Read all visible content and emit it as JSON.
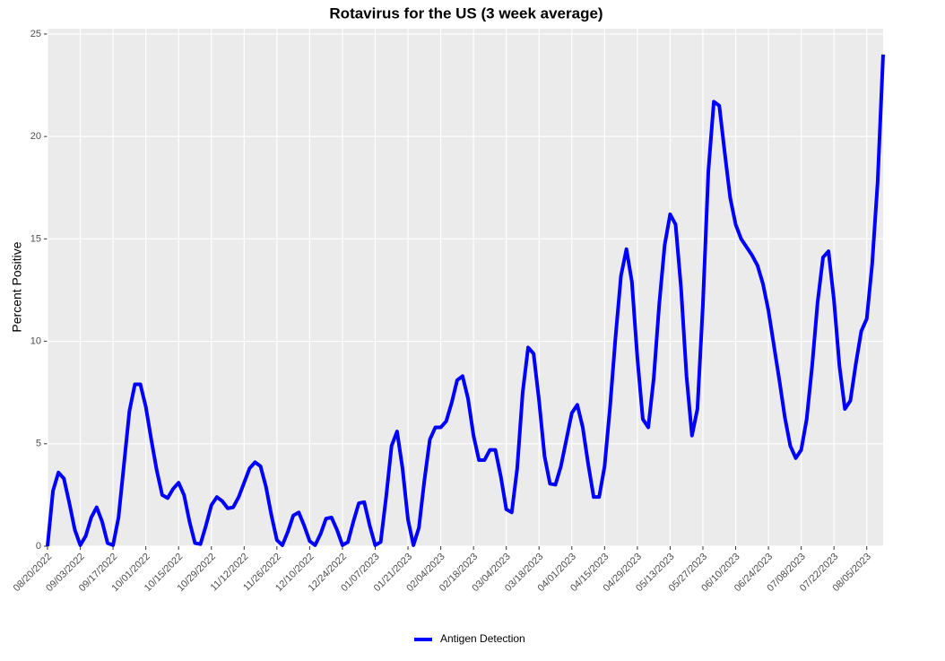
{
  "chart_data": {
    "type": "line",
    "title": "Rotavirus for the US (3 week average)",
    "y_label": "Percent Positive",
    "categories": [
      "08/20/2022",
      null,
      null,
      null,
      null,
      null,
      "09/03/2022",
      null,
      null,
      null,
      null,
      null,
      "09/17/2022",
      null,
      null,
      null,
      null,
      null,
      "10/01/2022",
      null,
      null,
      null,
      null,
      null,
      "10/15/2022",
      null,
      null,
      null,
      null,
      null,
      "10/29/2022",
      null,
      null,
      null,
      null,
      null,
      "11/12/2022",
      null,
      null,
      null,
      null,
      null,
      "11/26/2022",
      null,
      null,
      null,
      null,
      null,
      "12/10/2022",
      null,
      null,
      null,
      null,
      null,
      "12/24/2022",
      null,
      null,
      null,
      null,
      null,
      "01/07/2023",
      null,
      null,
      null,
      null,
      null,
      "01/21/2023",
      null,
      null,
      null,
      null,
      null,
      "02/04/2023",
      null,
      null,
      null,
      null,
      null,
      "02/18/2023",
      null,
      null,
      null,
      null,
      null,
      "03/04/2023",
      null,
      null,
      null,
      null,
      null,
      "03/18/2023",
      null,
      null,
      null,
      null,
      null,
      "04/01/2023",
      null,
      null,
      null,
      null,
      null,
      "04/15/2023",
      null,
      null,
      null,
      null,
      null,
      "04/29/2023",
      null,
      null,
      null,
      null,
      null,
      "05/13/2023",
      null,
      null,
      null,
      null,
      null,
      "05/27/2023",
      null,
      null,
      null,
      null,
      null,
      "06/10/2023",
      null,
      null,
      null,
      null,
      null,
      "06/24/2023",
      null,
      null,
      null,
      null,
      null,
      "07/08/2023",
      null,
      null,
      null,
      null,
      null,
      "07/22/2023",
      null,
      null,
      null,
      null,
      null,
      "08/05/2023",
      null,
      null,
      null
    ],
    "series": [
      {
        "name": "Antigen Detection",
        "color": "#0000ff",
        "values": [
          0,
          2.7,
          3.6,
          3.3,
          2.1,
          0.8,
          0.05,
          0.5,
          1.4,
          1.9,
          1.2,
          0.15,
          0.05,
          1.4,
          4.0,
          6.6,
          7.9,
          7.9,
          6.8,
          5.2,
          3.7,
          2.5,
          2.35,
          2.8,
          3.1,
          2.5,
          1.2,
          0.15,
          0.1,
          1.0,
          2.0,
          2.4,
          2.2,
          1.85,
          1.9,
          2.4,
          3.1,
          3.8,
          4.1,
          3.9,
          2.9,
          1.5,
          0.3,
          0.05,
          0.7,
          1.5,
          1.65,
          1.0,
          0.25,
          0.05,
          0.6,
          1.35,
          1.4,
          0.8,
          0.05,
          0.2,
          1.2,
          2.1,
          2.15,
          1.0,
          0.05,
          0.2,
          2.4,
          4.9,
          5.6,
          3.8,
          1.3,
          0.05,
          0.9,
          3.2,
          5.2,
          5.8,
          5.8,
          6.1,
          7.0,
          8.1,
          8.3,
          7.2,
          5.4,
          4.2,
          4.2,
          4.7,
          4.7,
          3.4,
          1.8,
          1.65,
          3.8,
          7.5,
          9.7,
          9.4,
          7.1,
          4.4,
          3.05,
          3.0,
          3.9,
          5.2,
          6.5,
          6.9,
          5.8,
          4.0,
          2.4,
          2.4,
          3.9,
          6.8,
          10.2,
          13.2,
          14.5,
          12.9,
          9.2,
          6.2,
          5.8,
          8.2,
          11.8,
          14.7,
          16.2,
          15.7,
          12.6,
          8.3,
          5.4,
          6.7,
          11.8,
          18.3,
          21.7,
          21.5,
          19.2,
          17.0,
          15.7,
          15.0,
          14.6,
          14.2,
          13.7,
          12.8,
          11.5,
          9.8,
          8.1,
          6.3,
          4.9,
          4.3,
          4.7,
          6.2,
          8.8,
          11.9,
          14.1,
          14.4,
          12.0,
          8.8,
          6.7,
          7.1,
          8.9,
          10.5,
          11.1,
          13.8,
          17.8,
          24
        ]
      }
    ],
    "ylim": [
      0,
      25.26
    ],
    "yticks": [
      0,
      5,
      10,
      15,
      20,
      25
    ],
    "grid": true,
    "legend": "bottom"
  }
}
